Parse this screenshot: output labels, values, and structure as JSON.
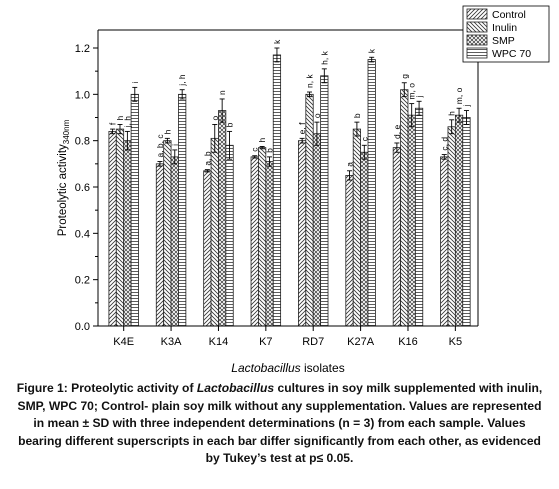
{
  "chart_data": {
    "type": "bar",
    "title": "",
    "xlabel_italic": "Lactobacillus",
    "xlabel_rest": " isolates",
    "ylabel_main": "Proteolytic activity",
    "ylabel_sub": "340nm",
    "ylim": [
      0.0,
      1.2
    ],
    "yticks": [
      "0.0",
      "0.2",
      "0.4",
      "0.6",
      "0.8",
      "1.0",
      "1.2"
    ],
    "grid": false,
    "legend_position": "top-right",
    "categories": [
      "K4E",
      "K3A",
      "K14",
      "K7",
      "RD7",
      "K27A",
      "K16",
      "K5"
    ],
    "series": [
      {
        "name": "Control",
        "pattern": "hatch-fwd",
        "values": [
          0.84,
          0.7,
          0.67,
          0.73,
          0.8,
          0.65,
          0.77,
          0.73
        ],
        "errors": [
          0.01,
          0.01,
          0.005,
          0.005,
          0.01,
          0.02,
          0.02,
          0.01
        ]
      },
      {
        "name": "Inulin",
        "pattern": "hatch-back",
        "values": [
          0.85,
          0.8,
          0.81,
          0.77,
          1.0,
          0.85,
          1.02,
          0.86
        ],
        "errors": [
          0.02,
          0.01,
          0.06,
          0.005,
          0.01,
          0.03,
          0.03,
          0.03
        ]
      },
      {
        "name": "SMP",
        "pattern": "crosshatch",
        "values": [
          0.8,
          0.73,
          0.93,
          0.71,
          0.83,
          0.75,
          0.91,
          0.91
        ],
        "errors": [
          0.04,
          0.03,
          0.05,
          0.02,
          0.05,
          0.03,
          0.05,
          0.03
        ]
      },
      {
        "name": "WPC 70",
        "pattern": "hlines",
        "values": [
          1.0,
          1.0,
          0.78,
          1.17,
          1.08,
          1.15,
          0.94,
          0.9
        ],
        "errors": [
          0.03,
          0.02,
          0.06,
          0.03,
          0.03,
          0.01,
          0.03,
          0.03
        ]
      }
    ],
    "bar_labels": [
      [
        "f",
        "h",
        "j, h",
        "i"
      ],
      [
        "a, b, c",
        "h",
        "i",
        "j, h"
      ],
      [
        "a, b",
        "o",
        "n",
        "b"
      ],
      [
        "c",
        "h",
        "b",
        "k"
      ],
      [
        "e, f",
        "n, k",
        "o",
        "h, k"
      ],
      [
        "a",
        "b",
        "c",
        "k"
      ],
      [
        "d, e",
        "g",
        "m, o",
        "j"
      ],
      [
        "c, d",
        "h",
        "m, o",
        "j"
      ]
    ]
  },
  "caption": {
    "figure_label": "Figure 1:",
    "text_before_italic": " Proteolytic activity of ",
    "italic_word": "Lactobacillus",
    "text_after_italic": " cultures in soy milk supplemented with inulin, SMP, WPC 70; Control- plain soy milk without any supplementation. Values are represented in mean ± SD with three independent determinations (n = 3) from each sample. Values bearing different superscripts in each bar differ significantly from each other, as evidenced by Tukey’s test at p≤ 0.05."
  }
}
